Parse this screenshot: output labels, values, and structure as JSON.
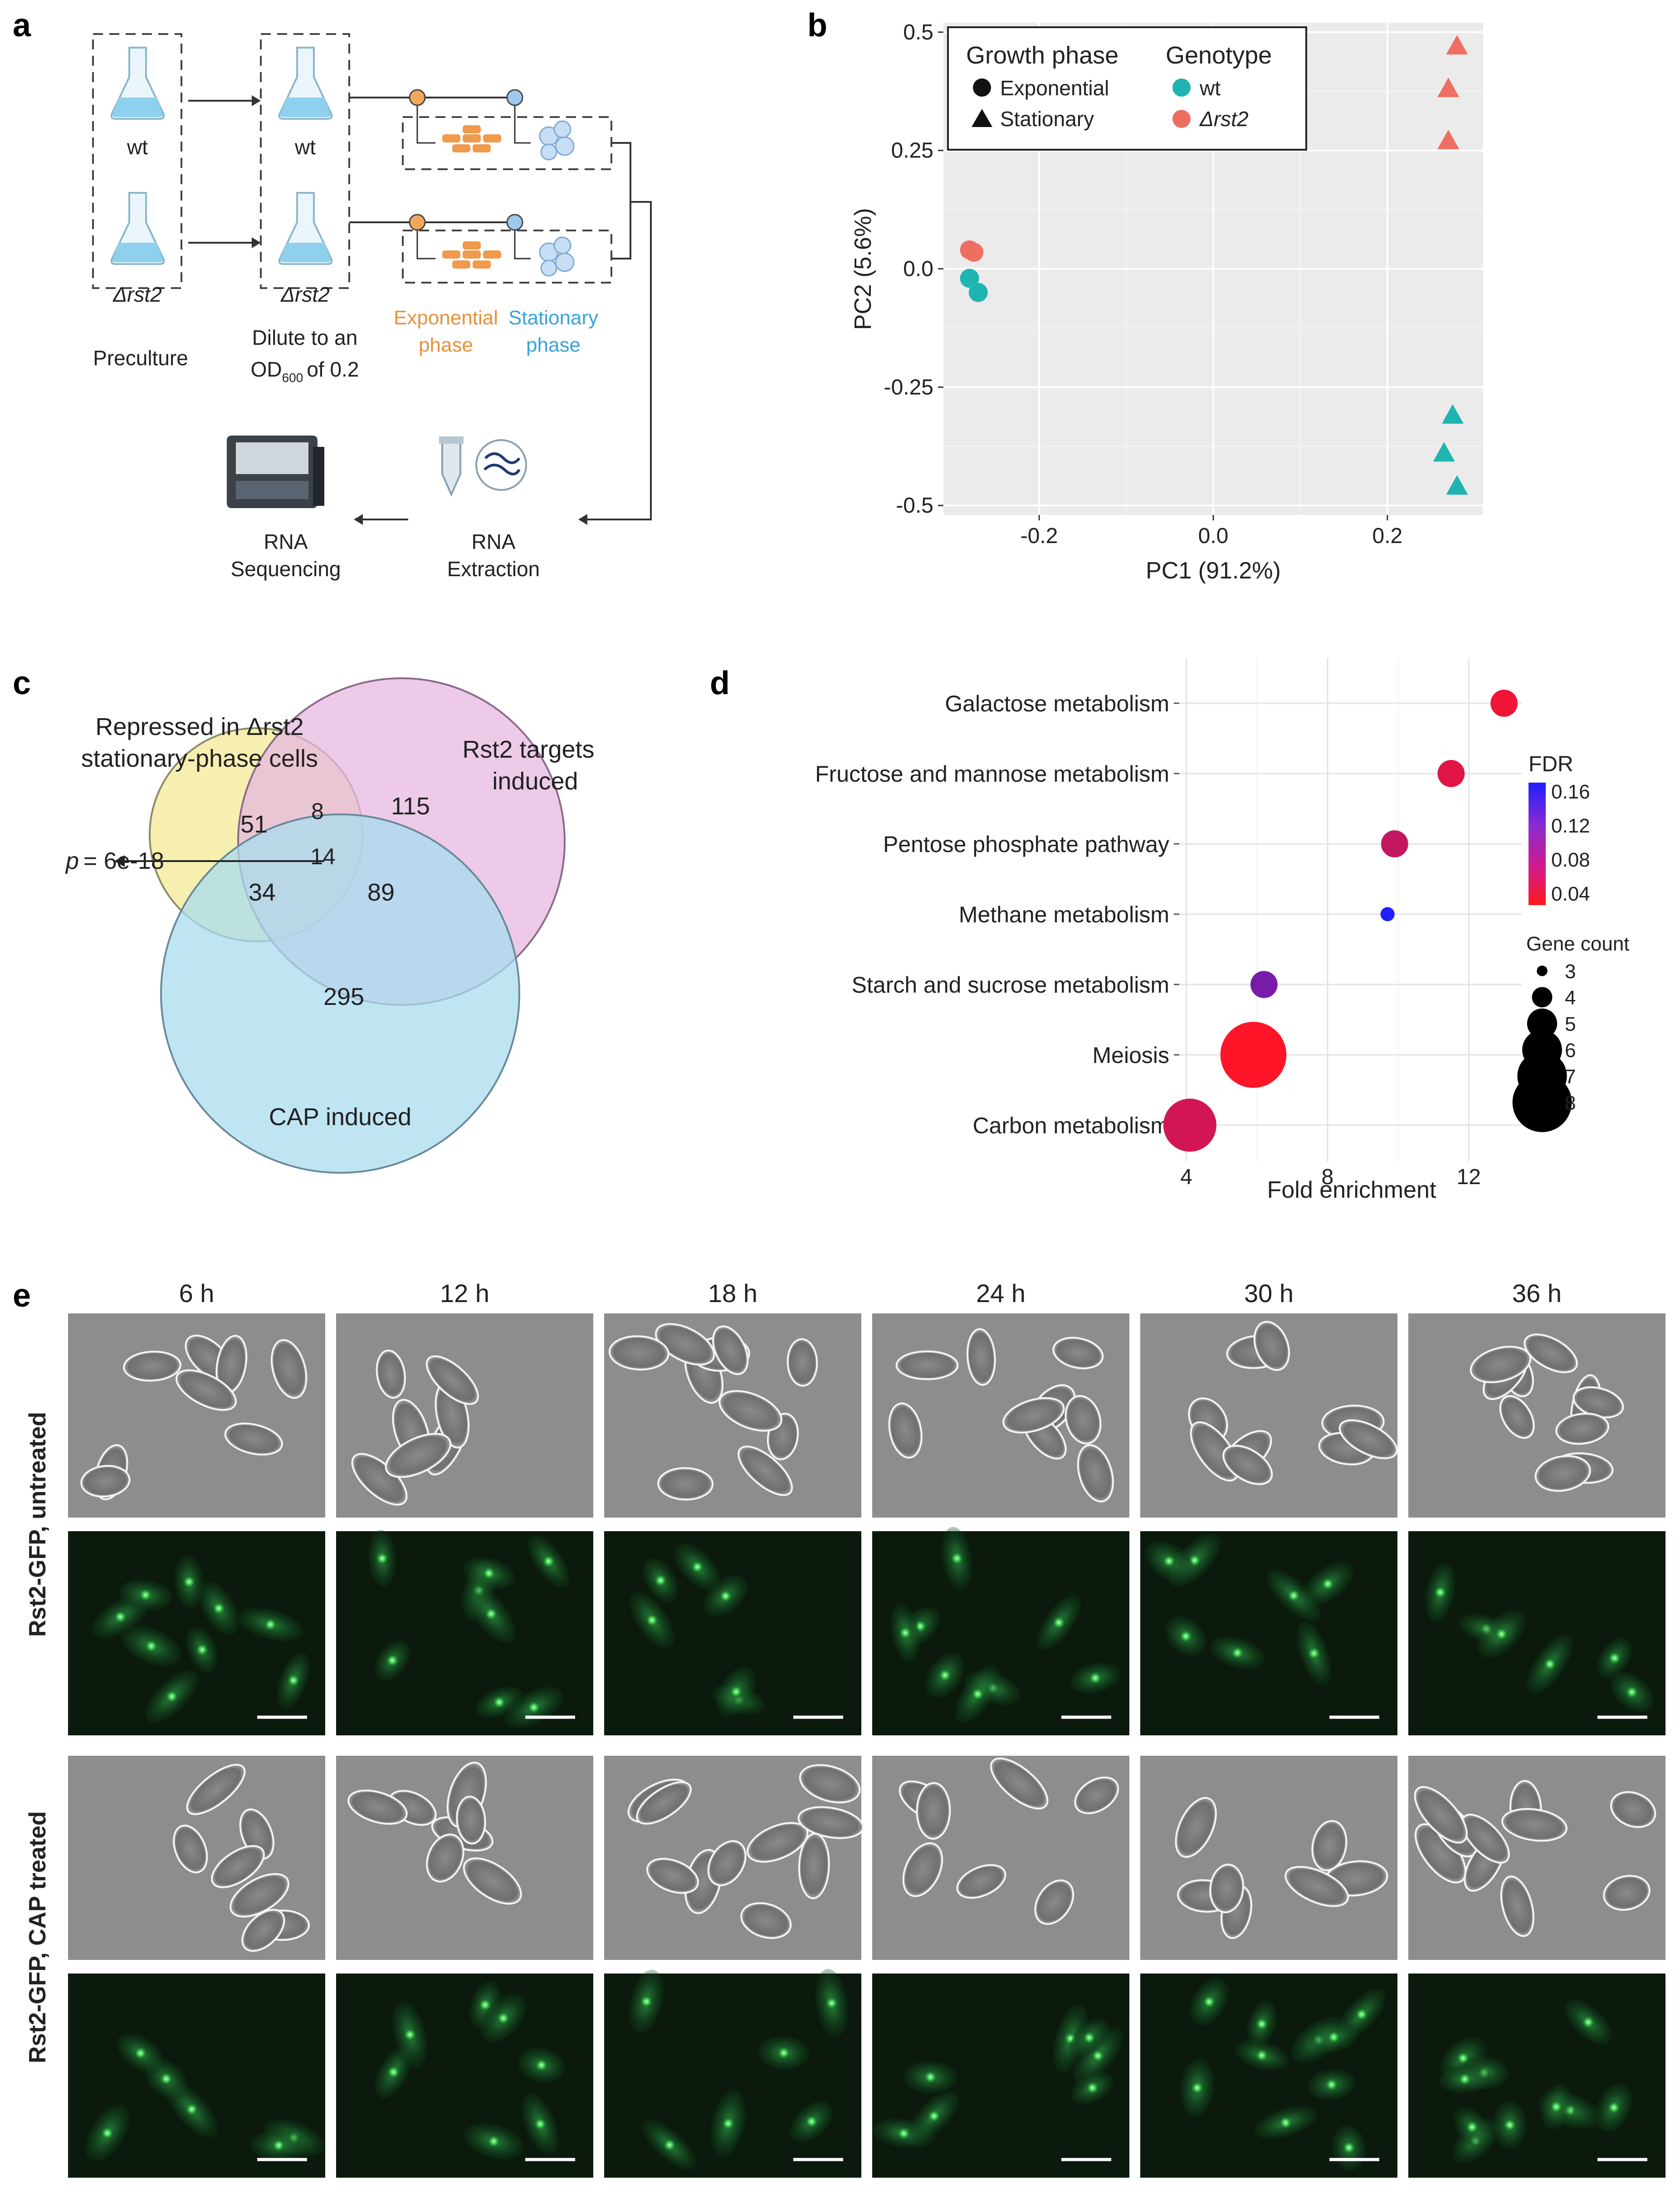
{
  "panel_labels": [
    "a",
    "b",
    "c",
    "d",
    "e"
  ],
  "panel_a": {
    "flask_labels": [
      "wt",
      "Δrst2",
      "wt",
      "Δrst2"
    ],
    "preculture": "Preculture",
    "dilute": "Dilute to an",
    "od": "OD",
    "od_sub": "600",
    "od_tail": "of 0.2",
    "exp_phase_1": "Exponential",
    "exp_phase_2": "phase",
    "stat_phase_1": "Stationary",
    "stat_phase_2": "phase",
    "rna_seq_1": "RNA",
    "rna_seq_2": "Sequencing",
    "rna_ext_1": "RNA",
    "rna_ext_2": "Extraction",
    "colors": {
      "exponential": "#e8913a",
      "stationary": "#3aa3d8",
      "flask": "#bfe3f5"
    }
  },
  "chart_data": [
    {
      "type": "scatter",
      "xlabel": "PC1 (91.2%)",
      "ylabel": "PC2 (5.6%)",
      "xlim": [
        -0.31,
        0.31
      ],
      "ylim": [
        -0.52,
        0.52
      ],
      "xticks": [
        -0.2,
        0.0,
        0.2
      ],
      "xtick_labels": [
        "-0.2",
        "0.0",
        "0.2"
      ],
      "yticks": [
        -0.5,
        -0.25,
        0.0,
        0.25,
        0.5
      ],
      "ytick_labels": [
        "-0.5",
        "-0.25",
        "0.0",
        "0.25",
        "0.5"
      ],
      "grid": true,
      "legend": {
        "placement": "top-left",
        "shape_title": "Growth phase",
        "shape_items": [
          "Exponential",
          "Stationary"
        ],
        "color_title": "Genotype",
        "color_items": [
          "wt",
          "Δrst2"
        ]
      },
      "colors": {
        "wt": "#1fb4b0",
        "rst2": "#ee6f62"
      },
      "points": [
        {
          "x": -0.28,
          "y": -0.02,
          "genotype": "wt",
          "phase": "Exponential"
        },
        {
          "x": -0.27,
          "y": -0.05,
          "genotype": "wt",
          "phase": "Exponential"
        },
        {
          "x": -0.28,
          "y": 0.04,
          "genotype": "rst2",
          "phase": "Exponential"
        },
        {
          "x": -0.275,
          "y": 0.035,
          "genotype": "rst2",
          "phase": "Exponential"
        },
        {
          "x": 0.28,
          "y": 0.47,
          "genotype": "rst2",
          "phase": "Stationary"
        },
        {
          "x": 0.27,
          "y": 0.38,
          "genotype": "rst2",
          "phase": "Stationary"
        },
        {
          "x": 0.27,
          "y": 0.27,
          "genotype": "rst2",
          "phase": "Stationary"
        },
        {
          "x": 0.275,
          "y": -0.31,
          "genotype": "wt",
          "phase": "Stationary"
        },
        {
          "x": 0.265,
          "y": -0.39,
          "genotype": "wt",
          "phase": "Stationary"
        },
        {
          "x": 0.28,
          "y": -0.46,
          "genotype": "wt",
          "phase": "Stationary"
        }
      ]
    },
    {
      "type": "venn",
      "sets": [
        {
          "label_1": "Repressed in Δrst2",
          "label_2": "stationary-phase cells",
          "color": "#f6eca2"
        },
        {
          "label_1": "Rst2 targets",
          "label_2": "induced",
          "color": "#e6b8e0"
        },
        {
          "label_1": "CAP induced",
          "label_2": "",
          "color": "#a9dcef"
        }
      ],
      "regions": [
        {
          "set": "A only",
          "value": "51"
        },
        {
          "set": "A and B",
          "value": "8"
        },
        {
          "set": "B only",
          "value": "115"
        },
        {
          "set": "A, B and C",
          "value": "14"
        },
        {
          "set": "A and C",
          "value": "34"
        },
        {
          "set": "B and C",
          "value": "89"
        },
        {
          "set": "C only",
          "value": "295"
        }
      ],
      "p_value": "= 6e-18",
      "p_label": "p"
    },
    {
      "type": "dot",
      "xlabel": "Fold enrichment",
      "xlim": [
        3.8,
        13.5
      ],
      "xticks": [
        4,
        8,
        12
      ],
      "xtick_labels": [
        "4",
        "8",
        "12"
      ],
      "categories": [
        "Galactose metabolism",
        "Fructose and mannose metabolism",
        "Pentose phosphate pathway",
        "Methane metabolism",
        "Starch and sucrose metabolism",
        "Meiosis",
        "Carbon metabolism"
      ],
      "fold_enrichment": [
        13.0,
        11.5,
        9.9,
        9.7,
        6.2,
        5.9,
        4.1
      ],
      "gene_count": [
        4,
        4,
        4,
        3,
        4,
        7,
        6
      ],
      "fdr": [
        0.02,
        0.03,
        0.05,
        0.16,
        0.1,
        0.01,
        0.04
      ],
      "legend": {
        "color_title": "FDR",
        "color_ticks": [
          "0.16",
          "0.12",
          "0.08",
          "0.04"
        ],
        "size_title": "Gene count",
        "size_items": [
          "3",
          "4",
          "5",
          "6",
          "7",
          "8"
        ]
      },
      "grid": true
    }
  ],
  "panel_e": {
    "timepoints": [
      "6 h",
      "12 h",
      "18 h",
      "24 h",
      "30 h",
      "36 h"
    ],
    "row_labels": [
      "Rst2-GFP, untreated",
      "Rst2-GFP, CAP treated"
    ]
  }
}
